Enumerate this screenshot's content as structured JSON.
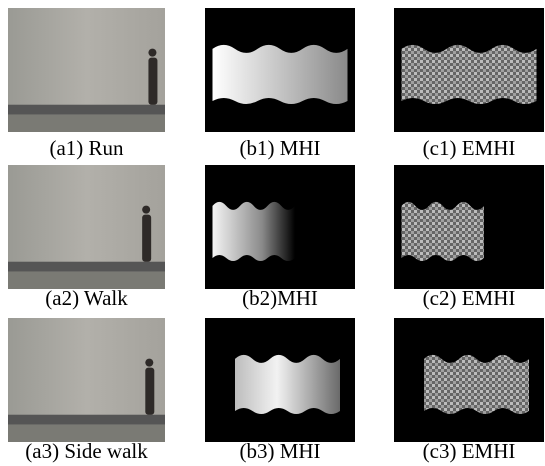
{
  "figure": {
    "rows": [
      {
        "captions": [
          "(a1) Run",
          "(b1) MHI",
          "(c1) EMHI"
        ]
      },
      {
        "captions": [
          "(a2) Walk",
          "(b2)MHI",
          "(c2) EMHI"
        ]
      },
      {
        "captions": [
          "(a3) Side walk",
          "(b3) MHI",
          "(c3) EMHI"
        ]
      }
    ]
  }
}
